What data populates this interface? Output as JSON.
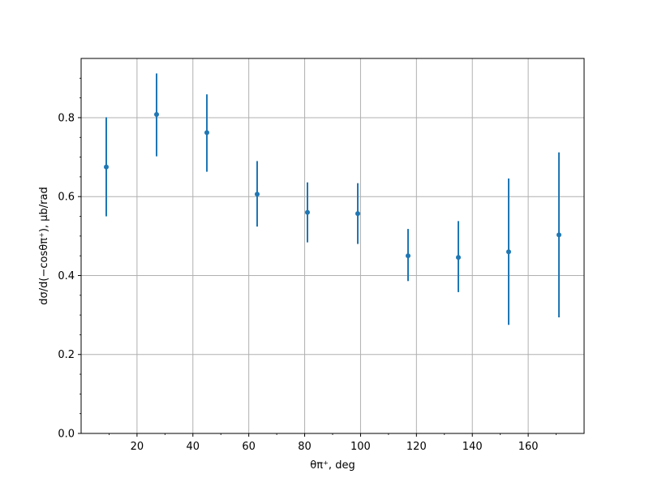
{
  "chart_data": {
    "type": "scatter",
    "xlabel": "θπ⁺, deg",
    "ylabel": "dσ/d(−cosθπ⁺), μb/rad",
    "xlim": [
      0,
      180
    ],
    "ylim": [
      0,
      0.95
    ],
    "xticks": [
      20,
      40,
      60,
      80,
      100,
      120,
      140,
      160
    ],
    "xtick_labels": [
      "20",
      "40",
      "60",
      "80",
      "100",
      "120",
      "140",
      "160"
    ],
    "yticks": [
      0.0,
      0.2,
      0.4,
      0.6,
      0.8
    ],
    "ytick_labels": [
      "0.0",
      "0.2",
      "0.4",
      "0.6",
      "0.8"
    ],
    "grid": true,
    "color": "#1f77b4",
    "series": [
      {
        "x": [
          9,
          27,
          45,
          63,
          81,
          99,
          117,
          135,
          153,
          171
        ],
        "y": [
          0.675,
          0.808,
          0.762,
          0.606,
          0.56,
          0.557,
          0.45,
          0.446,
          0.46,
          0.503
        ],
        "err_low": [
          0.125,
          0.106,
          0.099,
          0.082,
          0.076,
          0.077,
          0.064,
          0.088,
          0.185,
          0.209
        ],
        "err_high": [
          0.126,
          0.104,
          0.097,
          0.084,
          0.076,
          0.077,
          0.068,
          0.092,
          0.186,
          0.209
        ]
      }
    ]
  }
}
